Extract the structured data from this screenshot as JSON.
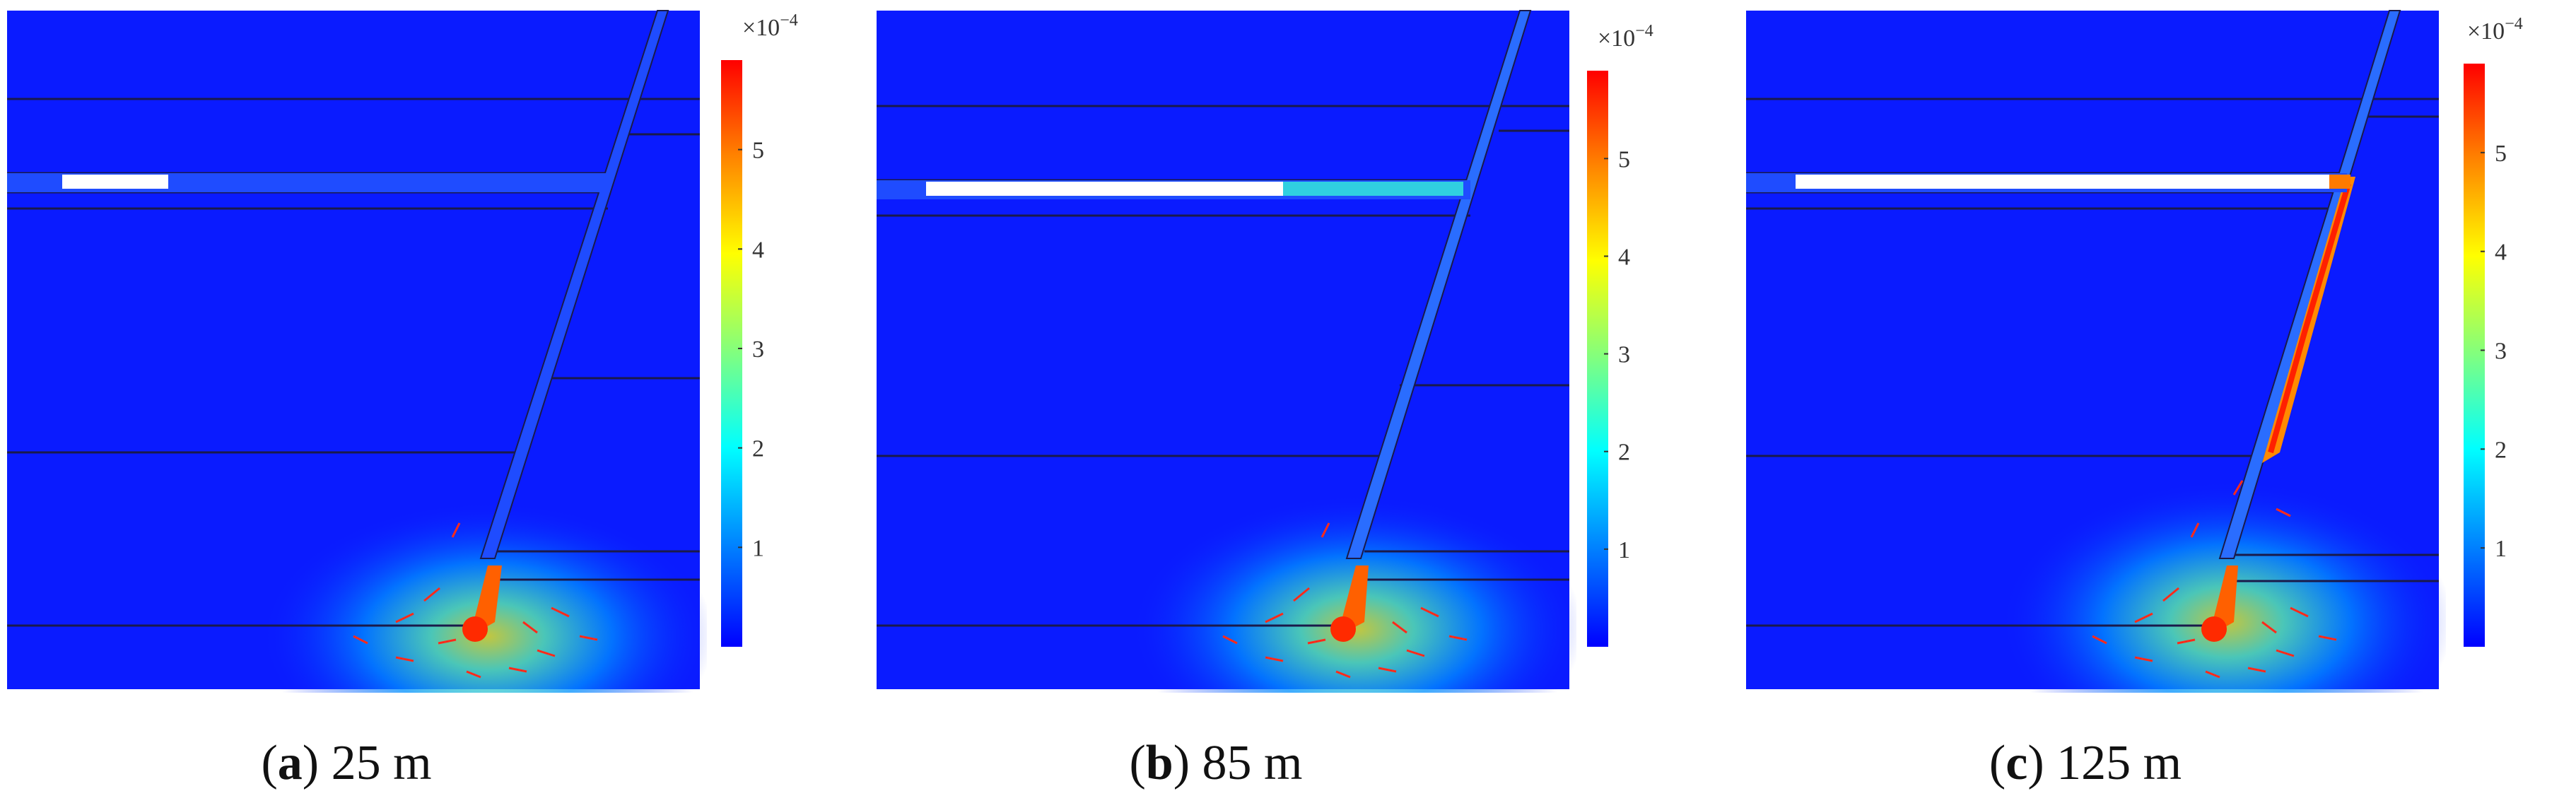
{
  "colorbar": {
    "multiplier_base": "×10",
    "multiplier_exp": "−4",
    "ticks": [
      "1",
      "2",
      "3",
      "4",
      "5"
    ],
    "tick_values": [
      1,
      2,
      3,
      4,
      5
    ],
    "max_value": 5.9,
    "colors": [
      "#0000ff",
      "#0080ff",
      "#00ffff",
      "#80ff80",
      "#ffff00",
      "#ff8000",
      "#ff0000"
    ]
  },
  "colors": {
    "background_field": "#0a1bff",
    "layer_line": "#1a1a4a",
    "excavated_roadway": "#ffffff",
    "stress_arrow": "#ff2a1a"
  },
  "panels": [
    {
      "letter": "a",
      "value": "25 m",
      "open": "(",
      "close": ")"
    },
    {
      "letter": "b",
      "value": "85 m",
      "open": "(",
      "close": ")"
    },
    {
      "letter": "c",
      "value": "125 m",
      "open": "(",
      "close": ")"
    }
  ]
}
